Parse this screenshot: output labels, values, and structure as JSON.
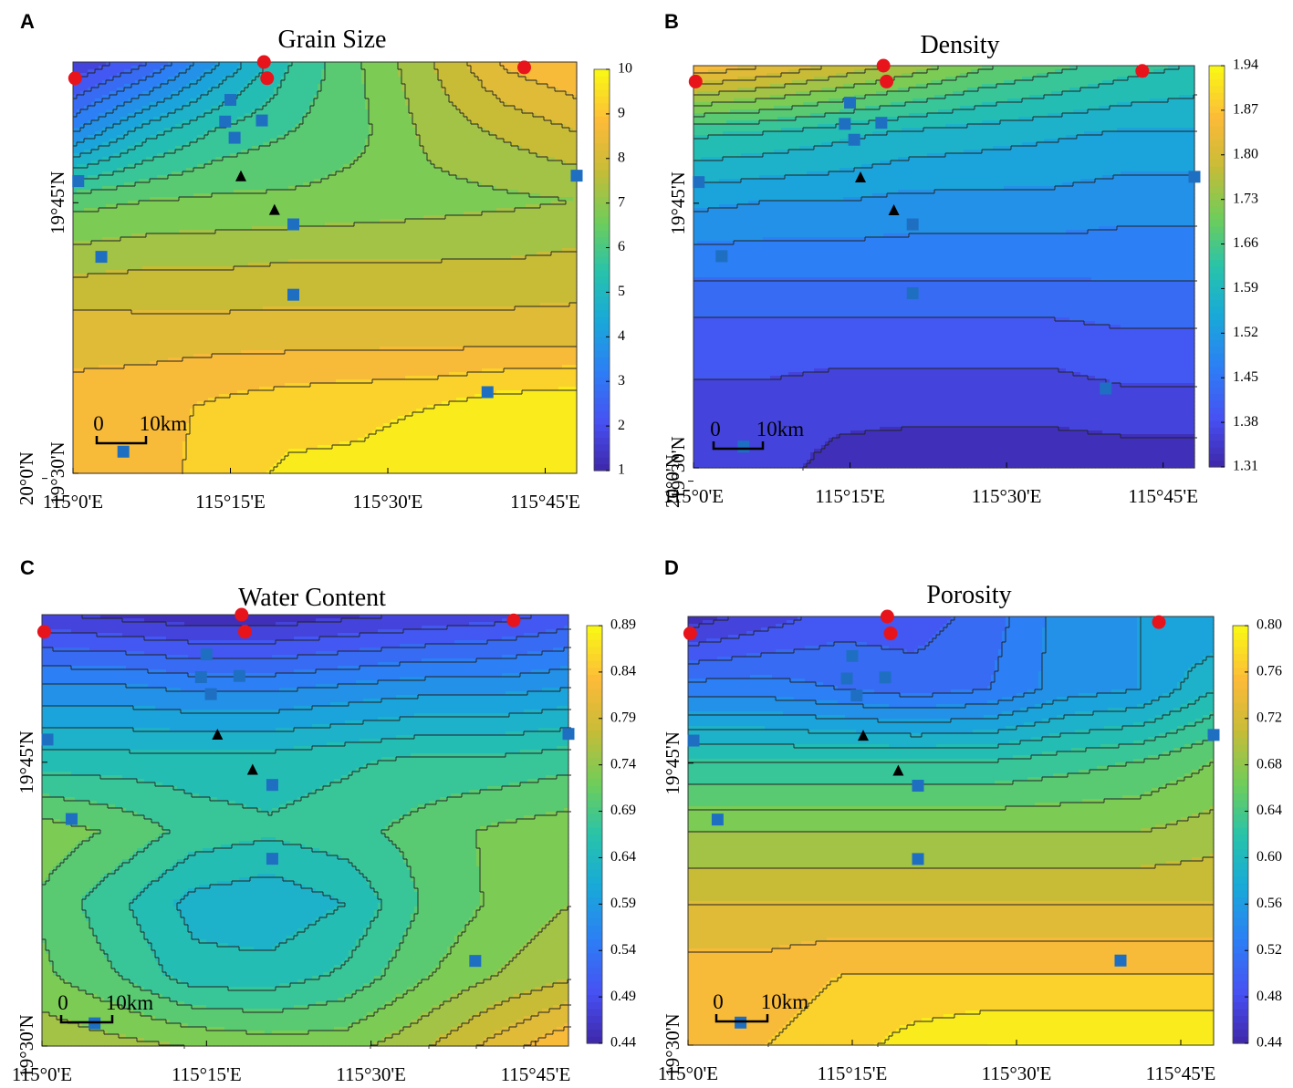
{
  "figure": {
    "colors": {
      "low": "#3e26a8",
      "mid_blue": "#2c7ff5",
      "teal": "#22b5c4",
      "green": "#41c98b",
      "yellow_green": "#a6c63c",
      "orange": "#f4b43a",
      "high": "#f9f91a",
      "site_red": "#e8141c",
      "site_blue": "#1e6fc2",
      "site_black": "#000000"
    },
    "scale_bar": {
      "start_label": "0",
      "end_label": "10km"
    },
    "x_axis": {
      "ticks": [
        0,
        15,
        30,
        45
      ],
      "labels": [
        "115°0'E",
        "115°15'E",
        "115°30'E",
        "115°45'E"
      ]
    },
    "y_axis": {
      "ticks": [
        30,
        45,
        60
      ],
      "labels": [
        "19°30'N",
        "19°45'N",
        "20°0'N"
      ]
    }
  },
  "chart_data": [
    {
      "panel": "A",
      "type": "contour",
      "title": "Grain Size",
      "xlim": [
        115.0,
        115.8
      ],
      "ylim": [
        19.5,
        19.88
      ],
      "colorbar": {
        "min": 1,
        "max": 10,
        "ticks": [
          "1",
          "2",
          "3",
          "4",
          "5",
          "6",
          "7",
          "8",
          "9",
          "10"
        ]
      },
      "rows": [
        [
          1.5,
          2.5,
          4.0,
          5.5,
          6.5,
          7.5,
          8.6,
          9.0
        ],
        [
          3.5,
          4.8,
          5.6,
          6.0,
          6.4,
          7.2,
          7.6,
          8.0
        ],
        [
          6.3,
          6.5,
          6.6,
          6.6,
          6.7,
          6.8,
          6.9,
          7.0
        ],
        [
          7.4,
          7.5,
          7.5,
          7.6,
          7.6,
          7.6,
          7.6,
          7.7
        ],
        [
          8.4,
          8.3,
          8.3,
          8.3,
          8.3,
          8.3,
          8.3,
          8.3
        ],
        [
          8.6,
          8.8,
          9.1,
          9.3,
          9.4,
          9.5,
          9.8,
          9.9
        ],
        [
          8.5,
          8.7,
          9.3,
          9.6,
          9.6,
          9.8,
          10.0,
          10.0
        ]
      ]
    },
    {
      "panel": "B",
      "type": "contour",
      "title": "Density",
      "xlim": [
        115.0,
        115.8
      ],
      "ylim": [
        19.5,
        19.88
      ],
      "colorbar": {
        "min": 1.31,
        "max": 1.94,
        "ticks": [
          "1.31",
          "1.38",
          "1.45",
          "1.52",
          "1.59",
          "1.66",
          "1.73",
          "1.80",
          "1.87",
          "1.94"
        ]
      },
      "rows": [
        [
          1.86,
          1.83,
          1.79,
          1.75,
          1.7,
          1.67,
          1.64,
          1.62
        ],
        [
          1.63,
          1.62,
          1.6,
          1.58,
          1.57,
          1.56,
          1.55,
          1.55
        ],
        [
          1.53,
          1.52,
          1.52,
          1.51,
          1.51,
          1.51,
          1.5,
          1.5
        ],
        [
          1.46,
          1.46,
          1.46,
          1.46,
          1.46,
          1.46,
          1.46,
          1.46
        ],
        [
          1.4,
          1.4,
          1.4,
          1.4,
          1.4,
          1.4,
          1.41,
          1.41
        ],
        [
          1.37,
          1.37,
          1.36,
          1.36,
          1.36,
          1.36,
          1.37,
          1.37
        ],
        [
          1.36,
          1.36,
          1.33,
          1.32,
          1.32,
          1.32,
          1.32,
          1.32
        ]
      ]
    },
    {
      "panel": "C",
      "type": "contour",
      "title": "Water Content",
      "xlim": [
        115.0,
        115.8
      ],
      "ylim": [
        19.5,
        19.88
      ],
      "colorbar": {
        "min": 0.44,
        "max": 0.89,
        "ticks": [
          "0.44",
          "0.49",
          "0.54",
          "0.59",
          "0.64",
          "0.69",
          "0.74",
          "0.79",
          "0.84",
          "0.89"
        ]
      },
      "rows": [
        [
          0.47,
          0.46,
          0.45,
          0.45,
          0.46,
          0.47,
          0.48,
          0.5
        ],
        [
          0.57,
          0.57,
          0.56,
          0.56,
          0.57,
          0.58,
          0.58,
          0.59
        ],
        [
          0.65,
          0.65,
          0.65,
          0.65,
          0.66,
          0.67,
          0.67,
          0.68
        ],
        [
          0.73,
          0.71,
          0.68,
          0.67,
          0.68,
          0.7,
          0.72,
          0.73
        ],
        [
          0.71,
          0.67,
          0.63,
          0.62,
          0.64,
          0.69,
          0.72,
          0.74
        ],
        [
          0.72,
          0.69,
          0.65,
          0.65,
          0.67,
          0.71,
          0.74,
          0.76
        ],
        [
          0.76,
          0.75,
          0.74,
          0.73,
          0.73,
          0.76,
          0.8,
          0.84
        ]
      ]
    },
    {
      "panel": "D",
      "type": "contour",
      "title": "Porosity",
      "xlim": [
        115.0,
        115.8
      ],
      "ylim": [
        19.5,
        19.88
      ],
      "colorbar": {
        "min": 0.44,
        "max": 0.8,
        "ticks": [
          "0.44",
          "0.48",
          "0.52",
          "0.56",
          "0.60",
          "0.64",
          "0.68",
          "0.72",
          "0.76",
          "0.80"
        ]
      },
      "rows": [
        [
          0.45,
          0.47,
          0.49,
          0.49,
          0.51,
          0.55,
          0.56,
          0.56
        ],
        [
          0.53,
          0.53,
          0.52,
          0.51,
          0.52,
          0.55,
          0.56,
          0.6
        ],
        [
          0.62,
          0.62,
          0.62,
          0.62,
          0.62,
          0.63,
          0.64,
          0.66
        ],
        [
          0.68,
          0.68,
          0.68,
          0.68,
          0.68,
          0.68,
          0.68,
          0.69
        ],
        [
          0.72,
          0.72,
          0.72,
          0.72,
          0.72,
          0.72,
          0.72,
          0.72
        ],
        [
          0.75,
          0.75,
          0.76,
          0.76,
          0.76,
          0.76,
          0.76,
          0.76
        ],
        [
          0.76,
          0.76,
          0.77,
          0.79,
          0.8,
          0.8,
          0.8,
          0.8
        ]
      ]
    }
  ],
  "sites": {
    "red": [
      [
        0.2,
        19.865
      ],
      [
        18.2,
        19.88
      ],
      [
        18.5,
        19.865
      ],
      [
        43.0,
        19.875
      ]
    ],
    "blue": [
      [
        15.0,
        19.845
      ],
      [
        14.5,
        19.825
      ],
      [
        18.0,
        19.826
      ],
      [
        15.4,
        19.81
      ],
      [
        0.5,
        19.77
      ],
      [
        48.0,
        19.775
      ],
      [
        21.0,
        19.73
      ],
      [
        2.7,
        19.7
      ],
      [
        21.0,
        19.665
      ],
      [
        39.5,
        19.575
      ],
      [
        4.8,
        19.52
      ]
    ],
    "black": [
      [
        16.0,
        19.774
      ],
      [
        19.2,
        19.743
      ]
    ]
  }
}
